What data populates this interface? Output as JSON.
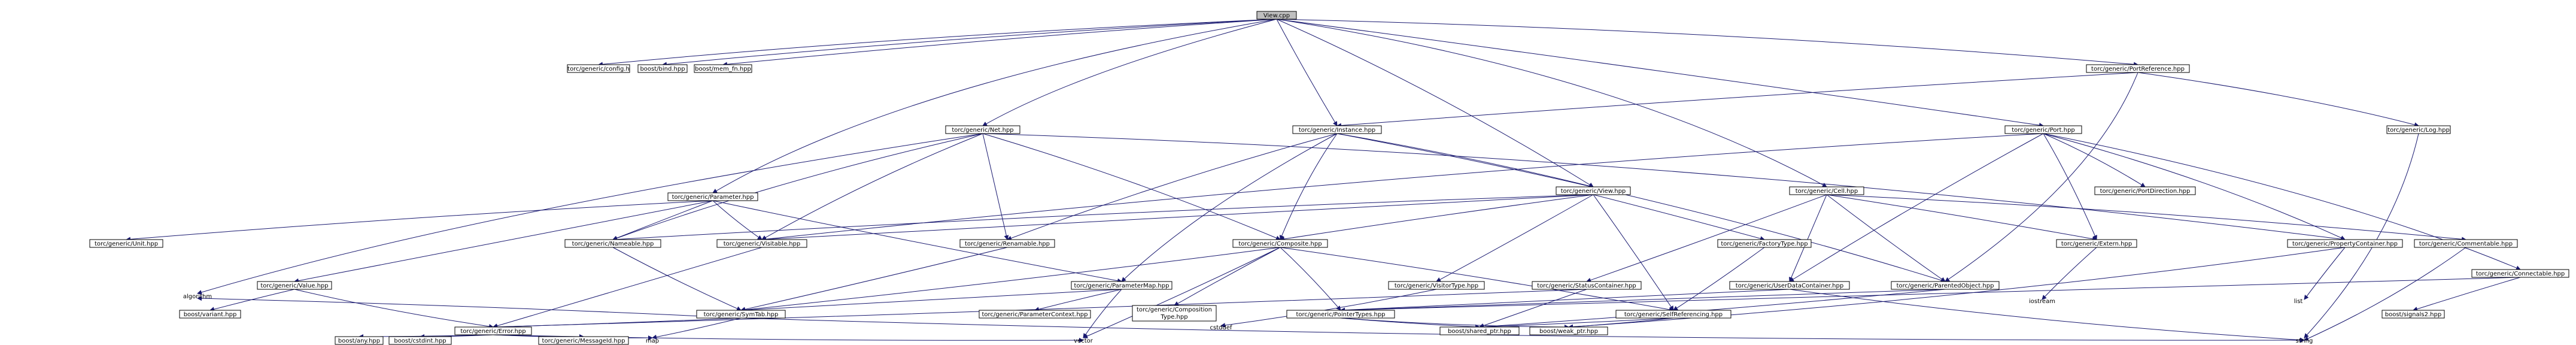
{
  "graph": {
    "root": "View.cpp",
    "edge_color": "#191970",
    "root_fill": "#bfbfbf",
    "nodes": {
      "view_cpp": "View.cpp",
      "config_h": "torc/generic/config.h",
      "boost_bind": "boost/bind.hpp",
      "boost_mem_fn": "boost/mem_fn.hpp",
      "net": "torc/generic/Net.hpp",
      "parameter": "torc/generic/Parameter.hpp",
      "instance": "torc/generic/Instance.hpp",
      "view_hpp": "torc/generic/View.hpp",
      "cell": "torc/generic/Cell.hpp",
      "port_reference": "torc/generic/PortReference.hpp",
      "log": "torc/generic/Log.hpp",
      "port": "torc/generic/Port.hpp",
      "port_direction": "torc/generic/PortDirection.hpp",
      "unit": "torc/generic/Unit.hpp",
      "value": "torc/generic/Value.hpp",
      "nameable": "torc/generic/Nameable.hpp",
      "visitable": "torc/generic/Visitable.hpp",
      "renamable": "torc/generic/Renamable.hpp",
      "composite": "torc/generic/Composite.hpp",
      "parameter_map": "torc/generic/ParameterMap.hpp",
      "visitor_type": "torc/generic/VisitorType.hpp",
      "factory_type": "torc/generic/FactoryType.hpp",
      "status_container": "torc/generic/StatusContainer.hpp",
      "extern": "torc/generic/Extern.hpp",
      "user_data_container": "torc/generic/UserDataContainer.hpp",
      "property_container": "torc/generic/PropertyContainer.hpp",
      "commentable": "torc/generic/Commentable.hpp",
      "parented_object": "torc/generic/ParentedObject.hpp",
      "connectable": "torc/generic/Connectable.hpp",
      "boost_variant": "boost/variant.hpp",
      "parameter_context": "torc/generic/ParameterContext.hpp",
      "composition_type_1": "torc/generic/Composition",
      "composition_type_2": "Type.hpp",
      "symtab": "torc/generic/SymTab.hpp",
      "self_referencing": "torc/generic/SelfReferencing.hpp",
      "pointer_types": "torc/generic/PointerTypes.hpp",
      "boost_signals2": "boost/signals2.hpp",
      "error": "torc/generic/Error.hpp",
      "boost_shared_ptr": "boost/shared_ptr.hpp",
      "boost_weak_ptr": "boost/weak_ptr.hpp",
      "boost_any": "boost/any.hpp",
      "boost_cstdint": "boost/cstdint.hpp",
      "messageid": "torc/generic/MessageId.hpp"
    },
    "plain": {
      "algorithm": "algorithm",
      "map": "map",
      "vector": "vector",
      "string": "string",
      "cstddef": "cstddef",
      "iostream": "iostream",
      "list": "list"
    }
  }
}
